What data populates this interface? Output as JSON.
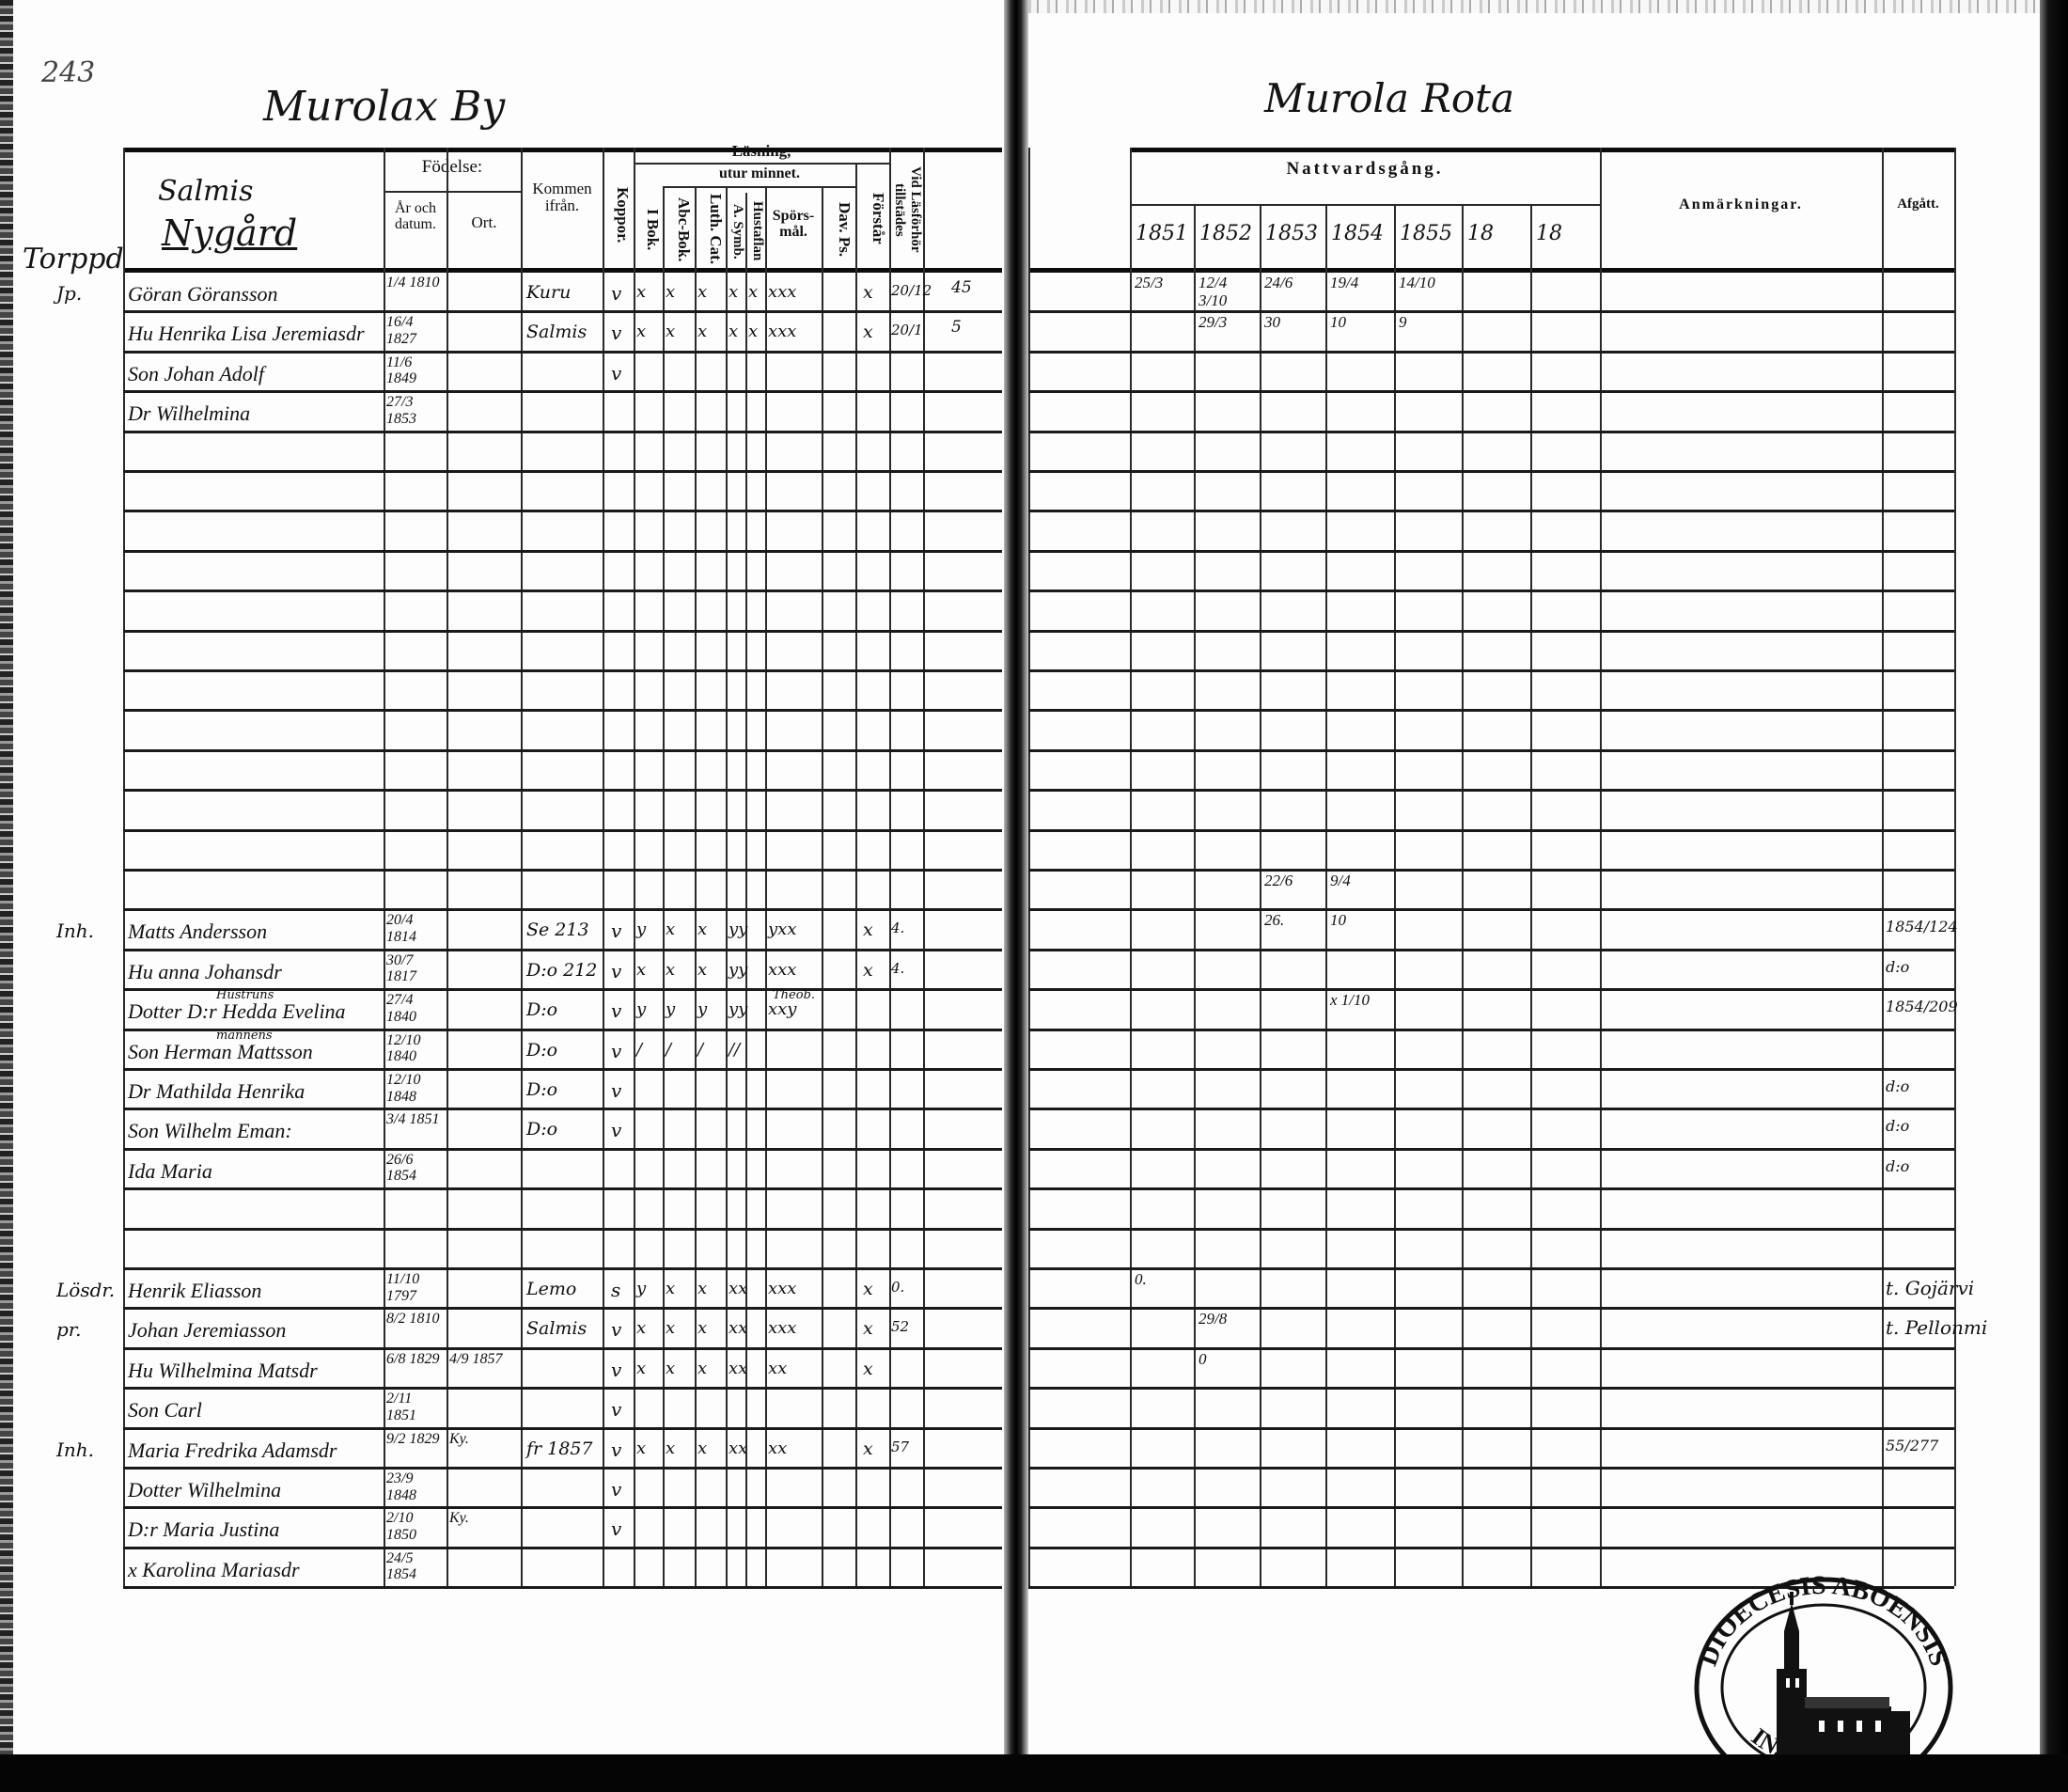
{
  "left_page": {
    "page_number": "243",
    "title": "Murolax By",
    "farm_village": "Salmis",
    "farm_name": "Nygård",
    "margin_heading": "Torppd",
    "headers": {
      "fodelse": "Födelse:",
      "ar_och_datum": "År och datum.",
      "ort": "Ort.",
      "kommen_ifran": "Kommen ifrån.",
      "koppor": "Koppor.",
      "lasning": "Läsning,",
      "utur_minnet": "utur minnet.",
      "i_bok": "I Bok.",
      "abc_bok": "Abc-Bok.",
      "luth_cat": "Luth. Cat.",
      "a_symb": "A. Symb.",
      "hustaflan": "Hustaflan",
      "sporsmal": "Spörs-mål.",
      "dav_ps": "Dav. Ps.",
      "forstar": "Förstår",
      "vid_lasforhor": "Vid Läsförhör tillstädes"
    },
    "rows": [
      {
        "margin": "Jp.",
        "name": "Göran Göransson",
        "birth": "1/4 1810",
        "from": "Kuru",
        "koppor": "v",
        "reading": [
          "x",
          "x",
          "x",
          "x",
          "x",
          "xxx",
          ""
        ],
        "forstar": "x",
        "lasforhor": "20/12",
        "extra": "45"
      },
      {
        "name": "Hu Henrika Lisa Jeremiasdr",
        "birth": "16/4 1827",
        "from": "Salmis",
        "koppor": "v",
        "reading": [
          "x",
          "x",
          "x",
          "x",
          "x",
          "xxx",
          ""
        ],
        "forstar": "x",
        "lasforhor": "20/1",
        "extra": "5"
      },
      {
        "name": "Son Johan Adolf",
        "birth": "11/6 1849",
        "koppor": "v"
      },
      {
        "name": "Dr Wilhelmina",
        "birth": "27/3 1853"
      },
      {},
      {},
      {},
      {},
      {},
      {},
      {},
      {},
      {},
      {},
      {},
      {},
      {
        "margin": "Inh.",
        "name": "Matts Andersson",
        "birth": "20/4 1814",
        "from": "Se 213",
        "koppor": "v",
        "reading": [
          "y",
          "x",
          "x",
          "yy",
          "",
          "yxx",
          ""
        ],
        "forstar": "x",
        "lasforhor": "4."
      },
      {
        "name": "Hu anna Johansdr",
        "birth": "30/7 1817",
        "from": "D:o 212",
        "koppor": "v",
        "reading": [
          "x",
          "x",
          "x",
          "yy",
          "",
          "xxx",
          ""
        ],
        "forstar": "x",
        "lasforhor": "4."
      },
      {
        "name": "Dotter D:r Hedda Evelina",
        "note": "Hustruns",
        "birth": "27/4 1840",
        "from": "D:o",
        "koppor": "v",
        "reading": [
          "y",
          "y",
          "y",
          "yy",
          "",
          "xxy",
          ""
        ],
        "reading_note": "Theob."
      },
      {
        "name": "Son Herman Mattsson",
        "note": "mannens",
        "birth": "12/10 1840",
        "from": "D:o",
        "koppor": "v",
        "reading": [
          "/",
          "/",
          "/",
          "//",
          "",
          "",
          ""
        ]
      },
      {
        "name": "Dr Mathilda Henrika",
        "birth": "12/10 1848",
        "from": "D:o",
        "koppor": "v"
      },
      {
        "name": "Son Wilhelm Eman:",
        "birth": "3/4 1851",
        "from": "D:o",
        "koppor": "v"
      },
      {
        "name": "Ida Maria",
        "birth": "26/6 1854"
      },
      {},
      {},
      {
        "margin": "Lösdr.",
        "name": "Henrik Eliasson",
        "birth": "11/10 1797",
        "from": "Lemo",
        "koppor": "s",
        "reading": [
          "y",
          "x",
          "x",
          "xx",
          "",
          "xxx",
          ""
        ],
        "forstar": "x",
        "lasforhor": "0."
      },
      {
        "margin": "pr.",
        "name": "Johan Jeremiasson",
        "birth": "8/2 1810",
        "from": "Salmis",
        "koppor": "v",
        "reading": [
          "x",
          "x",
          "x",
          "xx",
          "",
          "xxx",
          ""
        ],
        "forstar": "x",
        "lasforhor": "52"
      },
      {
        "name": "Hu Wilhelmina Matsdr",
        "birth": "6/8 1829",
        "ort": "4/9 1857",
        "koppor": "v",
        "reading": [
          "x",
          "x",
          "x",
          "xx",
          "",
          "xx",
          ""
        ],
        "forstar": "x"
      },
      {
        "name": "Son Carl",
        "birth": "2/11 1851",
        "koppor": "v"
      },
      {
        "margin": "Inh.",
        "name": "Maria Fredrika Adamsdr",
        "birth": "9/2 1829",
        "ort": "Ky.",
        "from": "fr 1857",
        "koppor": "v",
        "reading": [
          "x",
          "x",
          "x",
          "xx",
          "",
          "xx",
          ""
        ],
        "forstar": "x",
        "lasforhor": "57"
      },
      {
        "name": "Dotter Wilhelmina",
        "birth": "23/9 1848",
        "koppor": "v"
      },
      {
        "name": "D:r Maria Justina",
        "birth": "2/10 1850",
        "ort": "Ky.",
        "koppor": "v"
      },
      {
        "name": "x Karolina Mariasdr",
        "birth": "24/5 1854"
      }
    ]
  },
  "right_page": {
    "title": "Murola Rota",
    "headers": {
      "nattvardsgang": "Nattvardsgång.",
      "years": [
        "1851",
        "1852",
        "1853",
        "1854",
        "1855",
        "18",
        "18"
      ],
      "anmarkningar": "Anmärkningar.",
      "afgatt": "Afgått."
    },
    "rows": [
      {
        "communion": [
          "25/3",
          "12/4  3/10",
          "24/6",
          "19/4",
          "14/10",
          "",
          ""
        ]
      },
      {
        "communion": [
          "",
          "29/3",
          "30",
          "10",
          "9",
          "",
          ""
        ]
      },
      {},
      {},
      {},
      {},
      {},
      {},
      {},
      {},
      {},
      {},
      {},
      {},
      {},
      {
        "communion": [
          "",
          "",
          "22/6",
          "9/4",
          "",
          "",
          ""
        ]
      },
      {
        "communion": [
          "",
          "",
          "26.",
          "10",
          "",
          "",
          ""
        ],
        "afgatt": "1854/124"
      },
      {
        "afgatt": "d:o"
      },
      {
        "communion": [
          "",
          "",
          "",
          "x 1/10",
          "",
          "",
          ""
        ],
        "afgatt": "1854/209"
      },
      {},
      {
        "afgatt": "d:o"
      },
      {
        "afgatt": "d:o"
      },
      {
        "afgatt": "d:o"
      },
      {},
      {},
      {
        "communion": [
          "0.",
          "",
          "",
          "",
          "",
          "",
          ""
        ],
        "remark": "t. Gojärvi"
      },
      {
        "communion": [
          "",
          "29/8",
          "",
          "",
          "",
          "",
          ""
        ],
        "remark": "t. Pellonmi"
      },
      {
        "communion": [
          "",
          "0",
          "",
          "",
          "",
          "",
          ""
        ]
      },
      {},
      {
        "afgatt": "55/277"
      },
      {},
      {},
      {}
    ]
  },
  "stamp": {
    "text_top": "DIOECESIS ABOENSIS",
    "text_bottom": "IN.F.S.MAGNI"
  }
}
